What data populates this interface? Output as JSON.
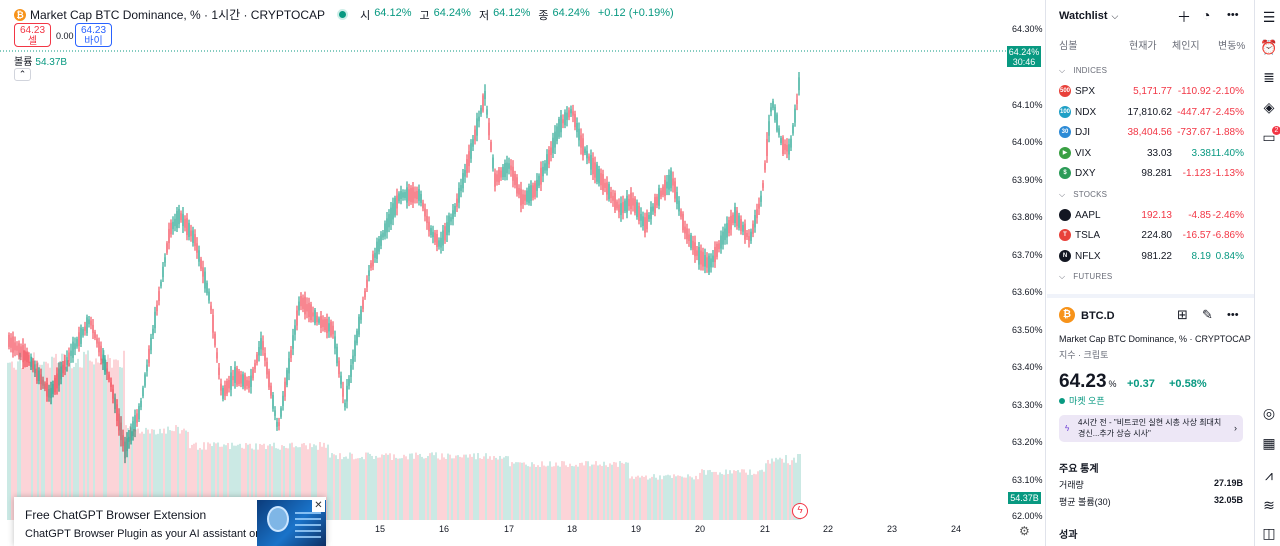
{
  "chart": {
    "symbol_title": "Market Cap BTC Dominance, % · 1시간 · CRYPTOCAP",
    "ohlc": [
      {
        "k": "시",
        "v": "64.12%"
      },
      {
        "k": "고",
        "v": "64.24%"
      },
      {
        "k": "저",
        "v": "64.12%"
      },
      {
        "k": "종",
        "v": "64.24%"
      }
    ],
    "change": "+0.12 (+0.19%)",
    "sell_price": "64.23",
    "sell_label": "셀",
    "spread": "0.00",
    "buy_price": "64.23",
    "buy_label": "바이",
    "volume_label": "볼륨",
    "volume_value": "54.37B",
    "collapse_glyph": "⌃",
    "price_tag": "64.24%",
    "countdown": "30:46",
    "volume_tag": "54.37B",
    "y_ticks": [
      "64.30%",
      "64.10%",
      "64.00%",
      "63.90%",
      "63.80%",
      "63.70%",
      "63.60%",
      "63.50%",
      "63.40%",
      "63.30%",
      "63.20%",
      "63.10%",
      "62.00%"
    ],
    "x_ticks": [
      "15",
      "16",
      "17",
      "18",
      "19",
      "20",
      "21",
      "22",
      "23",
      "24"
    ],
    "colors": {
      "up": "#089981",
      "down": "#f23645"
    },
    "ad": {
      "title": "Free ChatGPT Browser Extension",
      "subtitle": "ChatGPT Browser Plugin as your AI assistant on any"
    }
  },
  "watchlist": {
    "title": "Watchlist",
    "columns": {
      "symbol": "심볼",
      "last": "현재가",
      "change": "체인지",
      "pct": "변동%"
    },
    "sections": [
      {
        "name": "INDICES",
        "rows": [
          {
            "sym": "SPX",
            "icon": "500",
            "icon_color": "#e8413a",
            "last": "5,171.77",
            "last_color": "red",
            "chg": "-110.92",
            "pct": "-2.10%",
            "dir": "red"
          },
          {
            "sym": "NDX",
            "icon": "100",
            "icon_color": "#1fa0c6",
            "last": "17,810.62",
            "last_color": "dark",
            "chg": "-447.47",
            "pct": "-2.45%",
            "dir": "red"
          },
          {
            "sym": "DJI",
            "icon": "30",
            "icon_color": "#2d8bd6",
            "last": "38,404.56",
            "last_color": "red",
            "chg": "-737.67",
            "pct": "-1.88%",
            "dir": "red"
          },
          {
            "sym": "VIX",
            "icon": "▶",
            "icon_color": "#3aa043",
            "last": "33.03",
            "last_color": "dark",
            "chg": "3.38",
            "pct": "11.40%",
            "dir": "green"
          },
          {
            "sym": "DXY",
            "icon": "$",
            "icon_color": "#2b9b57",
            "last": "98.281",
            "last_color": "dark",
            "chg": "-1.123",
            "pct": "-1.13%",
            "dir": "red"
          }
        ]
      },
      {
        "name": "STOCKS",
        "rows": [
          {
            "sym": "AAPL",
            "icon": "",
            "icon_color": "#131722",
            "last": "192.13",
            "last_color": "red",
            "chg": "-4.85",
            "pct": "-2.46%",
            "dir": "red"
          },
          {
            "sym": "TSLA",
            "icon": "T",
            "icon_color": "#e8413a",
            "last": "224.80",
            "last_color": "dark",
            "chg": "-16.57",
            "pct": "-6.86%",
            "dir": "red"
          },
          {
            "sym": "NFLX",
            "icon": "N",
            "icon_color": "#131722",
            "last": "981.22",
            "last_color": "dark",
            "chg": "8.19",
            "pct": "0.84%",
            "dir": "green"
          }
        ]
      },
      {
        "name": "FUTURES",
        "rows": []
      }
    ]
  },
  "details": {
    "symbol": "BTC.D",
    "name": "Market Cap BTC Dominance, % · CRYPTOCAP",
    "kind": "지수 · 크립토",
    "price": "64.23",
    "unit": "%",
    "change": "+0.37",
    "change_pct": "+0.58%",
    "market_status": "마켓 오픈",
    "news": "4시간 전 - \"비트코인 실현 시총 사상 최대치 경신...추가 상승 시사\"",
    "stats_title": "주요 통계",
    "stats": [
      {
        "label": "거래량",
        "value": "27.19B"
      },
      {
        "label": "평균 볼륨(30)",
        "value": "32.05B"
      }
    ],
    "performance_title": "성과"
  }
}
